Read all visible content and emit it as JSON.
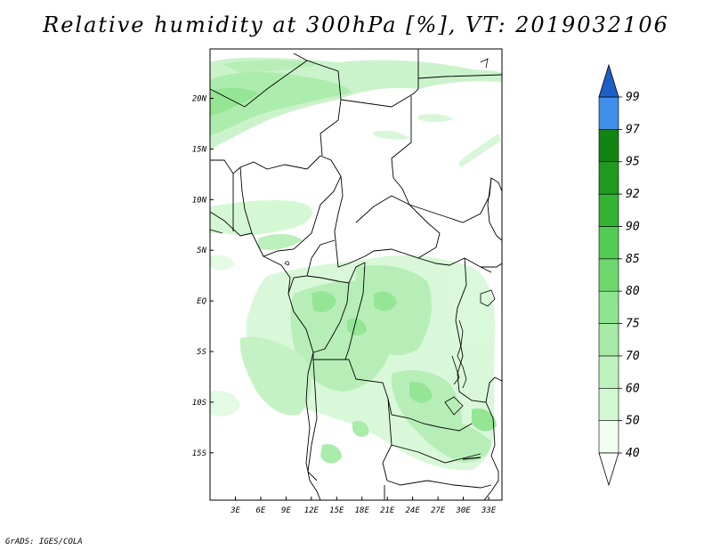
{
  "title": "Relative humidity at 300hPa [%], VT: 2019032106",
  "credit": "GrADS: IGES/COLA",
  "lat_labels": [
    "20N",
    "15N",
    "10N",
    "5N",
    "EQ",
    "5S",
    "10S",
    "15S"
  ],
  "lon_labels": [
    "3E",
    "6E",
    "9E",
    "12E",
    "15E",
    "18E",
    "21E",
    "24E",
    "27E",
    "30E",
    "33E"
  ],
  "colorbar": {
    "levels": [
      "40",
      "50",
      "60",
      "70",
      "75",
      "80",
      "85",
      "90",
      "92",
      "95",
      "97",
      "99"
    ],
    "colors": [
      "#f0fff0",
      "#d2f8d2",
      "#bff2bf",
      "#a6eba6",
      "#8fe48f",
      "#6ed86e",
      "#52cc52",
      "#33b533",
      "#1f9a1f",
      "#118511",
      "#3d8fe8",
      "#1f6fd8",
      "#1e5fc7"
    ]
  }
}
